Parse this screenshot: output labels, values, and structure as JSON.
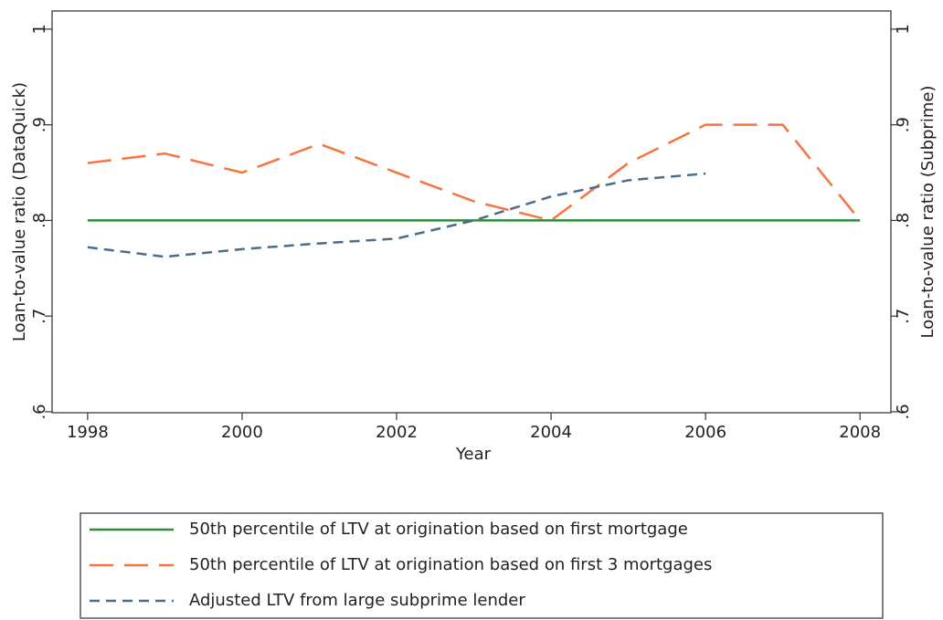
{
  "chart_data": {
    "type": "line",
    "x_label": "Year",
    "y_label": "Loan-to-value ratio (DataQuick)",
    "y2_label": "Loan-to-value ratio (Subprime)",
    "x": [
      1998,
      1999,
      2000,
      2001,
      2002,
      2003,
      2004,
      2005,
      2006,
      2007,
      2008
    ],
    "xlim": [
      1997.54,
      2008.4
    ],
    "xticks": [
      1998,
      2000,
      2002,
      2004,
      2006,
      2008
    ],
    "ylim": [
      0.599,
      1.019
    ],
    "yticks": [
      {
        "value": 0.6,
        "label": ".6"
      },
      {
        "value": 0.7,
        "label": ".7"
      },
      {
        "value": 0.8,
        "label": ".8"
      },
      {
        "value": 0.9,
        "label": ".9"
      },
      1
    ],
    "y2lim": [
      0.599,
      1.019
    ],
    "y2ticks": [
      {
        "value": 0.6,
        "label": ".6"
      },
      {
        "value": 0.7,
        "label": ".7"
      },
      {
        "value": 0.8,
        "label": ".8"
      },
      {
        "value": 0.9,
        "label": ".9"
      },
      1
    ],
    "series": [
      {
        "name": "50th percentile of LTV at origination based on first mortgage",
        "color": "#2f8a3c",
        "dash": "solid",
        "values": [
          0.8,
          0.8,
          0.8,
          0.8,
          0.8,
          0.8,
          0.8,
          0.8,
          0.8,
          0.8,
          0.8
        ]
      },
      {
        "name": "50th percentile of LTV at origination based on first 3 mortgages",
        "color": "#f8733f",
        "dash": "long",
        "values": [
          0.86,
          0.87,
          0.85,
          0.88,
          0.85,
          0.82,
          0.8,
          0.86,
          0.9,
          0.9,
          0.8
        ]
      },
      {
        "name": "Adjusted LTV from large subprime lender",
        "color": "#4a6d8c",
        "dash": "short",
        "axis": "y2",
        "values": [
          0.772,
          0.762,
          0.77,
          0.776,
          0.781,
          0.8,
          0.825,
          0.842,
          0.849,
          null,
          null
        ]
      }
    ]
  }
}
